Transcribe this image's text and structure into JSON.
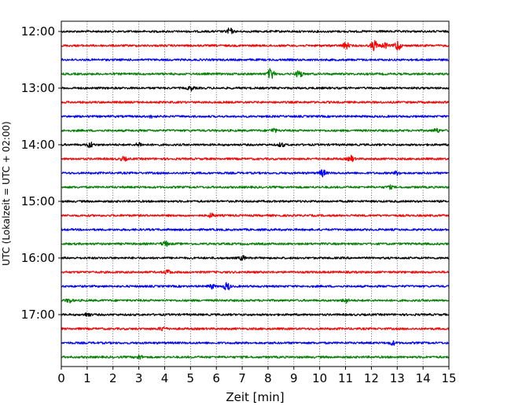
{
  "chart_data": {
    "type": "line",
    "chart_kind": "helicorder / seismogram drum plot",
    "xlabel": "Zeit  [min]",
    "ylabel": "UTC (Lokalzeit = UTC + 02:00)",
    "xlim": [
      0,
      15
    ],
    "x_ticks": [
      0,
      1,
      2,
      3,
      4,
      5,
      6,
      7,
      8,
      9,
      10,
      11,
      12,
      13,
      14,
      15
    ],
    "y_tick_labels": [
      "12:00",
      "13:00",
      "14:00",
      "15:00",
      "16:00",
      "17:00"
    ],
    "grid": "vertical dotted lines at each minute",
    "colors_cycle": [
      "#000000",
      "#ff0000",
      "#0000ff",
      "#008000"
    ],
    "traces": [
      {
        "start": "12:00",
        "color": "#000000",
        "events": [
          {
            "x": 6.5,
            "amp": 5
          }
        ]
      },
      {
        "start": "12:15",
        "color": "#ff0000",
        "events": [
          {
            "x": 11.0,
            "amp": 5
          },
          {
            "x": 12.1,
            "amp": 8
          },
          {
            "x": 12.5,
            "amp": 4
          },
          {
            "x": 13.0,
            "amp": 8
          }
        ]
      },
      {
        "start": "12:30",
        "color": "#0000ff",
        "events": []
      },
      {
        "start": "12:45",
        "color": "#008000",
        "events": [
          {
            "x": 8.1,
            "amp": 9
          },
          {
            "x": 9.2,
            "amp": 6
          }
        ]
      },
      {
        "start": "13:00",
        "color": "#000000",
        "events": [
          {
            "x": 5.0,
            "amp": 3
          }
        ]
      },
      {
        "start": "13:15",
        "color": "#ff0000",
        "events": []
      },
      {
        "start": "13:30",
        "color": "#0000ff",
        "events": [
          {
            "x": 3.5,
            "amp": 2
          }
        ]
      },
      {
        "start": "13:45",
        "color": "#008000",
        "events": [
          {
            "x": 8.2,
            "amp": 3
          },
          {
            "x": 14.5,
            "amp": 3
          }
        ]
      },
      {
        "start": "14:00",
        "color": "#000000",
        "events": [
          {
            "x": 1.1,
            "amp": 4
          },
          {
            "x": 3.0,
            "amp": 3
          },
          {
            "x": 8.5,
            "amp": 3
          }
        ]
      },
      {
        "start": "14:15",
        "color": "#ff0000",
        "events": [
          {
            "x": 2.4,
            "amp": 3
          },
          {
            "x": 11.2,
            "amp": 4
          }
        ]
      },
      {
        "start": "14:30",
        "color": "#0000ff",
        "events": [
          {
            "x": 10.1,
            "amp": 5
          },
          {
            "x": 13.0,
            "amp": 3
          }
        ]
      },
      {
        "start": "14:45",
        "color": "#008000",
        "events": [
          {
            "x": 12.7,
            "amp": 2
          }
        ]
      },
      {
        "start": "15:00",
        "color": "#000000",
        "events": []
      },
      {
        "start": "15:15",
        "color": "#ff0000",
        "events": [
          {
            "x": 5.8,
            "amp": 3
          }
        ]
      },
      {
        "start": "15:30",
        "color": "#0000ff",
        "events": []
      },
      {
        "start": "15:45",
        "color": "#008000",
        "events": [
          {
            "x": 4.0,
            "amp": 4
          }
        ]
      },
      {
        "start": "16:00",
        "color": "#000000",
        "events": [
          {
            "x": 7.0,
            "amp": 3
          }
        ]
      },
      {
        "start": "16:15",
        "color": "#ff0000",
        "events": [
          {
            "x": 4.1,
            "amp": 3
          }
        ]
      },
      {
        "start": "16:30",
        "color": "#0000ff",
        "events": [
          {
            "x": 6.4,
            "amp": 6
          },
          {
            "x": 5.8,
            "amp": 3
          }
        ]
      },
      {
        "start": "16:45",
        "color": "#008000",
        "events": [
          {
            "x": 0.3,
            "amp": 3
          },
          {
            "x": 11.0,
            "amp": 3
          }
        ]
      },
      {
        "start": "17:00",
        "color": "#000000",
        "events": [
          {
            "x": 1.0,
            "amp": 3
          }
        ]
      },
      {
        "start": "17:15",
        "color": "#ff0000",
        "events": [
          {
            "x": 3.9,
            "amp": 3
          }
        ]
      },
      {
        "start": "17:30",
        "color": "#0000ff",
        "events": [
          {
            "x": 12.8,
            "amp": 3
          }
        ]
      },
      {
        "start": "17:45",
        "color": "#008000",
        "events": [
          {
            "x": 3.0,
            "amp": 3
          }
        ]
      }
    ]
  }
}
